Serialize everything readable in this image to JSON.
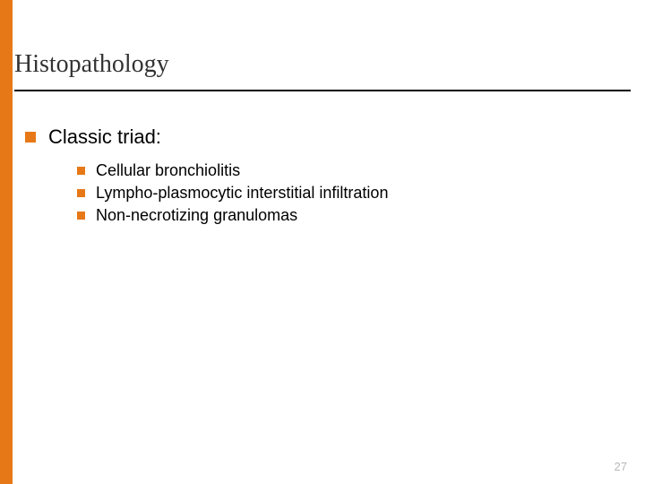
{
  "colors": {
    "accent": "#e77817",
    "titleText": "#333333",
    "bodyText": "#000000",
    "ruleColor": "#000000",
    "pageNumColor": "#b8b8b8",
    "background": "#ffffff"
  },
  "layout": {
    "titleFontSize": 28,
    "titleRuleWidth": 2,
    "l1FontSize": 22,
    "l2FontSize": 18,
    "pageNumFontSize": 13,
    "leftBarWidth": 14
  },
  "title": "Histopathology",
  "bullets": {
    "l1": "Classic triad:",
    "l2": [
      "Cellular bronchiolitis",
      "Lympho-plasmocytic interstitial infiltration",
      "Non-necrotizing granulomas"
    ]
  },
  "pageNumber": "27"
}
